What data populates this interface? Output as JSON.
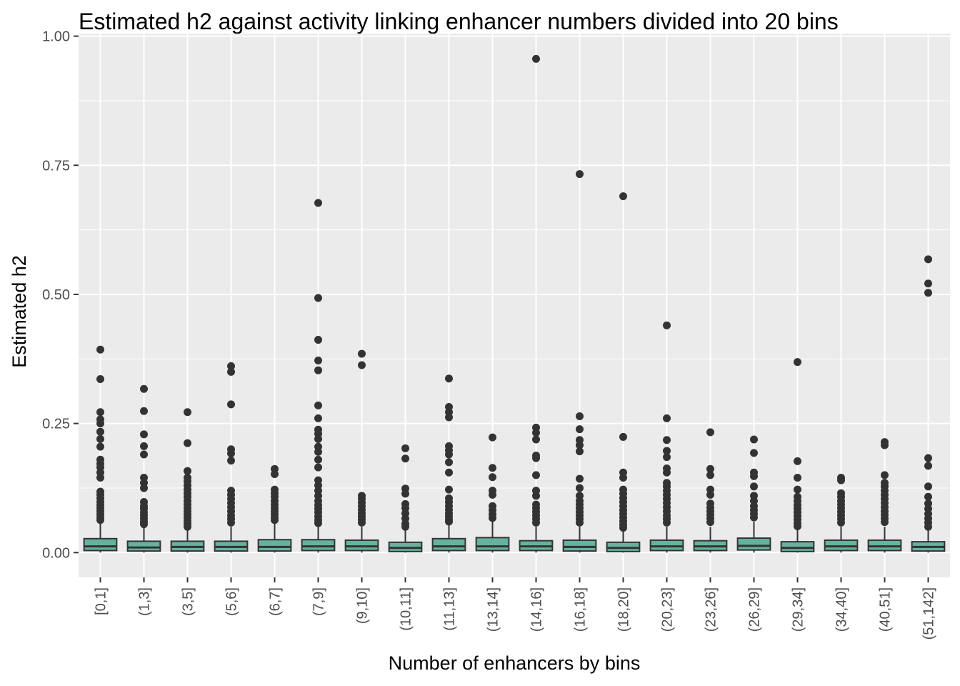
{
  "chart_data": {
    "type": "box",
    "title": "Estimated h2 against activity linking enhancer numbers divided into 20 bins",
    "xlabel": "Number of enhancers by bins",
    "ylabel": "Estimated h2",
    "ylim": [
      -0.048,
      1.005
    ],
    "y_ticks": [
      0.0,
      0.25,
      0.5,
      0.75,
      1.0
    ],
    "y_tick_labels": [
      "0.00",
      "0.25",
      "0.50",
      "0.75",
      "1.00"
    ],
    "categories": [
      "[0,1]",
      "(1,3]",
      "(3,5]",
      "(5,6]",
      "(6,7]",
      "(7,9]",
      "(9,10]",
      "(10,11]",
      "(11,13]",
      "(13,14]",
      "(14,16]",
      "(16,18]",
      "(18,20]",
      "(20,23]",
      "(23,26]",
      "(26,29]",
      "(29,34]",
      "(34,40]",
      "(40,51]",
      "(51,142]"
    ],
    "grid": true,
    "legend": "none",
    "colors": {
      "box_fill": "#66b2a0",
      "box_stroke": "#333333",
      "panel_bg": "#ebebeb",
      "grid": "#ffffff",
      "outlier": "#333333"
    },
    "boxes": [
      {
        "q1": 0.004,
        "median": 0.012,
        "q3": 0.027,
        "whisker_low": 0.0,
        "whisker_high": 0.06,
        "outliers": [
          0.393,
          0.336,
          0.272,
          0.258,
          0.25,
          0.234,
          0.22,
          0.205,
          0.18,
          0.172,
          0.165,
          0.155,
          0.145,
          0.118,
          0.112,
          0.105,
          0.098,
          0.092,
          0.086,
          0.08,
          0.074,
          0.068,
          0.063
        ]
      },
      {
        "q1": 0.003,
        "median": 0.01,
        "q3": 0.022,
        "whisker_low": 0.0,
        "whisker_high": 0.05,
        "outliers": [
          0.317,
          0.274,
          0.229,
          0.206,
          0.19,
          0.145,
          0.135,
          0.125,
          0.098,
          0.09,
          0.085,
          0.078,
          0.072,
          0.066,
          0.06,
          0.055
        ]
      },
      {
        "q1": 0.003,
        "median": 0.011,
        "q3": 0.022,
        "whisker_low": 0.0,
        "whisker_high": 0.045,
        "outliers": [
          0.272,
          0.212,
          0.158,
          0.145,
          0.138,
          0.13,
          0.122,
          0.115,
          0.108,
          0.1,
          0.093,
          0.086,
          0.08,
          0.074,
          0.068,
          0.062,
          0.056,
          0.05
        ]
      },
      {
        "q1": 0.003,
        "median": 0.011,
        "q3": 0.022,
        "whisker_low": 0.0,
        "whisker_high": 0.05,
        "outliers": [
          0.361,
          0.35,
          0.287,
          0.2,
          0.192,
          0.178,
          0.12,
          0.112,
          0.104,
          0.096,
          0.088,
          0.08,
          0.072,
          0.065,
          0.058
        ]
      },
      {
        "q1": 0.003,
        "median": 0.011,
        "q3": 0.025,
        "whisker_low": 0.0,
        "whisker_high": 0.06,
        "outliers": [
          0.162,
          0.152,
          0.122,
          0.115,
          0.108,
          0.1,
          0.093,
          0.086,
          0.08,
          0.074,
          0.068,
          0.063
        ]
      },
      {
        "q1": 0.004,
        "median": 0.012,
        "q3": 0.025,
        "whisker_low": 0.0,
        "whisker_high": 0.055,
        "outliers": [
          0.677,
          0.493,
          0.412,
          0.372,
          0.353,
          0.285,
          0.26,
          0.238,
          0.23,
          0.22,
          0.205,
          0.195,
          0.18,
          0.165,
          0.14,
          0.13,
          0.12,
          0.11,
          0.1,
          0.092,
          0.085,
          0.078,
          0.07,
          0.063,
          0.057
        ]
      },
      {
        "q1": 0.004,
        "median": 0.012,
        "q3": 0.024,
        "whisker_low": 0.0,
        "whisker_high": 0.05,
        "outliers": [
          0.385,
          0.363,
          0.11,
          0.104,
          0.097,
          0.09,
          0.083,
          0.076,
          0.07,
          0.064,
          0.058
        ]
      },
      {
        "q1": 0.002,
        "median": 0.009,
        "q3": 0.02,
        "whisker_low": 0.0,
        "whisker_high": 0.045,
        "outliers": [
          0.202,
          0.182,
          0.124,
          0.114,
          0.094,
          0.086,
          0.076,
          0.066,
          0.056,
          0.05
        ]
      },
      {
        "q1": 0.004,
        "median": 0.012,
        "q3": 0.027,
        "whisker_low": 0.0,
        "whisker_high": 0.055,
        "outliers": [
          0.337,
          0.282,
          0.272,
          0.262,
          0.206,
          0.198,
          0.19,
          0.175,
          0.155,
          0.122,
          0.105,
          0.098,
          0.09,
          0.083,
          0.076,
          0.07,
          0.064,
          0.06
        ]
      },
      {
        "q1": 0.004,
        "median": 0.012,
        "q3": 0.029,
        "whisker_low": 0.0,
        "whisker_high": 0.062,
        "outliers": [
          0.223,
          0.164,
          0.146,
          0.12,
          0.112,
          0.09,
          0.082,
          0.074,
          0.067
        ]
      },
      {
        "q1": 0.004,
        "median": 0.012,
        "q3": 0.023,
        "whisker_low": 0.0,
        "whisker_high": 0.05,
        "outliers": [
          0.956,
          0.242,
          0.232,
          0.219,
          0.188,
          0.183,
          0.15,
          0.12,
          0.11,
          0.093,
          0.086,
          0.079,
          0.072,
          0.065,
          0.058
        ]
      },
      {
        "q1": 0.003,
        "median": 0.011,
        "q3": 0.024,
        "whisker_low": 0.0,
        "whisker_high": 0.05,
        "outliers": [
          0.733,
          0.264,
          0.239,
          0.218,
          0.208,
          0.196,
          0.143,
          0.125,
          0.11,
          0.1,
          0.093,
          0.086,
          0.079,
          0.072,
          0.065,
          0.058
        ]
      },
      {
        "q1": 0.002,
        "median": 0.009,
        "q3": 0.02,
        "whisker_low": 0.0,
        "whisker_high": 0.045,
        "outliers": [
          0.69,
          0.224,
          0.155,
          0.145,
          0.122,
          0.114,
          0.106,
          0.098,
          0.09,
          0.082,
          0.075,
          0.068,
          0.061,
          0.054,
          0.048
        ]
      },
      {
        "q1": 0.004,
        "median": 0.012,
        "q3": 0.024,
        "whisker_low": 0.0,
        "whisker_high": 0.05,
        "outliers": [
          0.44,
          0.26,
          0.218,
          0.197,
          0.185,
          0.163,
          0.155,
          0.135,
          0.128,
          0.12,
          0.112,
          0.104,
          0.096,
          0.088,
          0.08,
          0.072,
          0.065,
          0.058
        ]
      },
      {
        "q1": 0.004,
        "median": 0.012,
        "q3": 0.023,
        "whisker_low": 0.0,
        "whisker_high": 0.05,
        "outliers": [
          0.233,
          0.162,
          0.15,
          0.122,
          0.112,
          0.095,
          0.087,
          0.08,
          0.073,
          0.066,
          0.059
        ]
      },
      {
        "q1": 0.005,
        "median": 0.013,
        "q3": 0.028,
        "whisker_low": 0.0,
        "whisker_high": 0.06,
        "outliers": [
          0.219,
          0.193,
          0.155,
          0.148,
          0.128,
          0.11,
          0.1,
          0.09,
          0.082,
          0.075,
          0.068
        ]
      },
      {
        "q1": 0.002,
        "median": 0.009,
        "q3": 0.021,
        "whisker_low": 0.0,
        "whisker_high": 0.048,
        "outliers": [
          0.369,
          0.177,
          0.145,
          0.122,
          0.108,
          0.1,
          0.092,
          0.085,
          0.078,
          0.071,
          0.064,
          0.057,
          0.051
        ]
      },
      {
        "q1": 0.004,
        "median": 0.012,
        "q3": 0.024,
        "whisker_low": 0.0,
        "whisker_high": 0.05,
        "outliers": [
          0.145,
          0.14,
          0.115,
          0.108,
          0.1,
          0.093,
          0.086,
          0.079,
          0.072,
          0.065,
          0.058
        ]
      },
      {
        "q1": 0.004,
        "median": 0.012,
        "q3": 0.024,
        "whisker_low": 0.0,
        "whisker_high": 0.05,
        "outliers": [
          0.214,
          0.208,
          0.15,
          0.135,
          0.128,
          0.12,
          0.112,
          0.104,
          0.096,
          0.088,
          0.08,
          0.073,
          0.066,
          0.059
        ]
      },
      {
        "q1": 0.003,
        "median": 0.011,
        "q3": 0.021,
        "whisker_low": 0.0,
        "whisker_high": 0.045,
        "outliers": [
          0.568,
          0.521,
          0.503,
          0.183,
          0.168,
          0.128,
          0.108,
          0.095,
          0.085,
          0.075,
          0.066,
          0.058,
          0.05
        ]
      }
    ]
  }
}
